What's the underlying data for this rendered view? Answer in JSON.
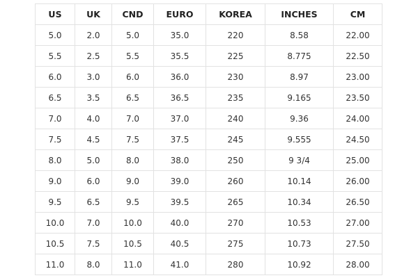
{
  "table": {
    "header": [
      "US",
      "UK",
      "CND",
      "EURO",
      "KOREA",
      "INCHES",
      "CM"
    ],
    "rows": [
      [
        "5.0",
        "2.0",
        "5.0",
        "35.0",
        "220",
        "8.58",
        "22.00"
      ],
      [
        "5.5",
        "2.5",
        "5.5",
        "35.5",
        "225",
        "8.775",
        "22.50"
      ],
      [
        "6.0",
        "3.0",
        "6.0",
        "36.0",
        "230",
        "8.97",
        "23.00"
      ],
      [
        "6.5",
        "3.5",
        "6.5",
        "36.5",
        "235",
        "9.165",
        "23.50"
      ],
      [
        "7.0",
        "4.0",
        "7.0",
        "37.0",
        "240",
        "9.36",
        "24.00"
      ],
      [
        "7.5",
        "4.5",
        "7.5",
        "37.5",
        "245",
        "9.555",
        "24.50"
      ],
      [
        "8.0",
        "5.0",
        "8.0",
        "38.0",
        "250",
        "9 3/4",
        "25.00"
      ],
      [
        "9.0",
        "6.0",
        "9.0",
        "39.0",
        "260",
        "10.14",
        "26.00"
      ],
      [
        "9.5",
        "6.5",
        "9.5",
        "39.5",
        "265",
        "10.34",
        "26.50"
      ],
      [
        "10.0",
        "7.0",
        "10.0",
        "40.0",
        "270",
        "10.53",
        "27.00"
      ],
      [
        "10.5",
        "7.5",
        "10.5",
        "40.5",
        "275",
        "10.73",
        "27.50"
      ],
      [
        "11.0",
        "8.0",
        "11.0",
        "41.0",
        "280",
        "10.92",
        "28.00"
      ]
    ]
  }
}
